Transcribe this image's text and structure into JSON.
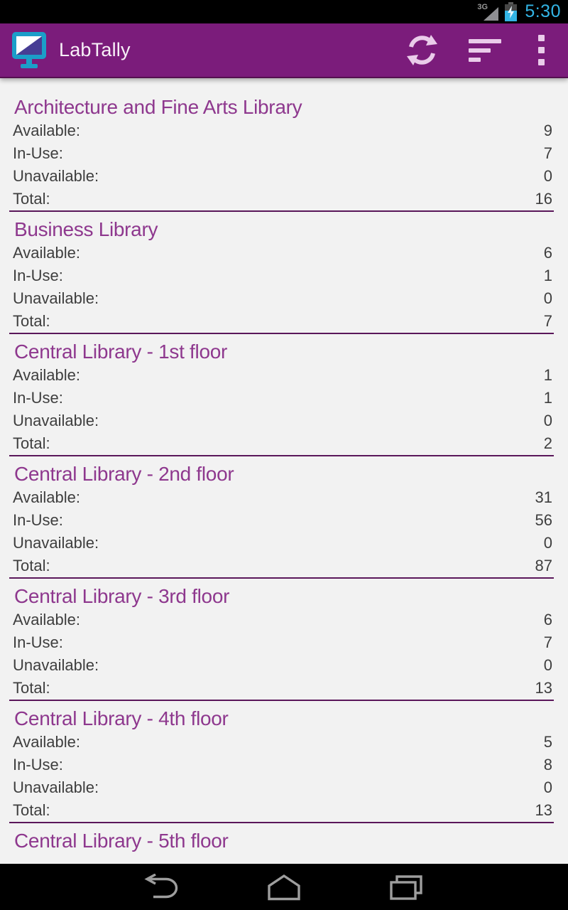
{
  "status_bar": {
    "network": "3G",
    "time": "5:30",
    "icons": [
      "signal-strength-icon",
      "battery-charging-icon"
    ],
    "time_color": "#33B5E5"
  },
  "action_bar": {
    "title": "LabTally",
    "background_color": "#7B1C7B",
    "icon_color": "#EACCEA",
    "app_icon": "monitor-app-icon",
    "actions": [
      "refresh-icon",
      "sort-icon",
      "overflow-menu-icon"
    ]
  },
  "list": {
    "header_color": "#8E388E",
    "divider_color": "#5A175A",
    "sections": [
      {
        "name": "Architecture and Fine Arts Library",
        "stats": [
          {
            "label": "Available:",
            "value": "9"
          },
          {
            "label": "In-Use:",
            "value": "7"
          },
          {
            "label": "Unavailable:",
            "value": "0"
          },
          {
            "label": "Total:",
            "value": "16"
          }
        ]
      },
      {
        "name": "Business Library",
        "stats": [
          {
            "label": "Available:",
            "value": "6"
          },
          {
            "label": "In-Use:",
            "value": "1"
          },
          {
            "label": "Unavailable:",
            "value": "0"
          },
          {
            "label": "Total:",
            "value": "7"
          }
        ]
      },
      {
        "name": "Central Library - 1st floor",
        "stats": [
          {
            "label": "Available:",
            "value": "1"
          },
          {
            "label": "In-Use:",
            "value": "1"
          },
          {
            "label": "Unavailable:",
            "value": "0"
          },
          {
            "label": "Total:",
            "value": "2"
          }
        ]
      },
      {
        "name": "Central Library - 2nd floor",
        "stats": [
          {
            "label": "Available:",
            "value": "31"
          },
          {
            "label": "In-Use:",
            "value": "56"
          },
          {
            "label": "Unavailable:",
            "value": "0"
          },
          {
            "label": "Total:",
            "value": "87"
          }
        ]
      },
      {
        "name": "Central Library - 3rd floor",
        "stats": [
          {
            "label": "Available:",
            "value": "6"
          },
          {
            "label": "In-Use:",
            "value": "7"
          },
          {
            "label": "Unavailable:",
            "value": "0"
          },
          {
            "label": "Total:",
            "value": "13"
          }
        ]
      },
      {
        "name": "Central Library - 4th floor",
        "stats": [
          {
            "label": "Available:",
            "value": "5"
          },
          {
            "label": "In-Use:",
            "value": "8"
          },
          {
            "label": "Unavailable:",
            "value": "0"
          },
          {
            "label": "Total:",
            "value": "13"
          }
        ]
      },
      {
        "name": "Central Library - 5th floor",
        "stats": []
      }
    ]
  },
  "nav_bar": {
    "icons": [
      "back-icon",
      "home-icon",
      "recent-apps-icon"
    ]
  }
}
